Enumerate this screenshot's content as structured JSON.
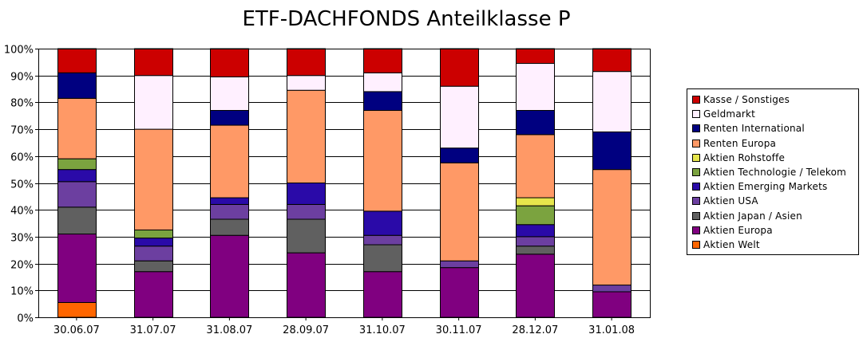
{
  "chart_data": {
    "type": "bar",
    "stacked": true,
    "title": "ETF-DACHFONDS Anteilklasse P",
    "categories": [
      "30.06.07",
      "31.07.07",
      "31.08.07",
      "28.09.07",
      "31.10.07",
      "30.11.07",
      "28.12.07",
      "31.01.08"
    ],
    "y_ticks": [
      "0%",
      "10%",
      "20%",
      "30%",
      "40%",
      "50%",
      "60%",
      "70%",
      "80%",
      "90%",
      "100%"
    ],
    "ylim": [
      0,
      100
    ],
    "grid": true,
    "legend_position": "right",
    "series": [
      {
        "name": "Aktien Welt",
        "color": "#FF6600",
        "values": [
          5.5,
          0,
          0,
          0,
          0,
          0,
          0,
          0
        ]
      },
      {
        "name": "Aktien Europa",
        "color": "#800080",
        "values": [
          25.5,
          17,
          30.5,
          24,
          17,
          18.5,
          23.5,
          9.5
        ]
      },
      {
        "name": "Aktien Japan / Asien",
        "color": "#606060",
        "values": [
          10,
          4,
          6,
          12.5,
          10,
          0,
          3,
          0
        ]
      },
      {
        "name": "Aktien USA",
        "color": "#6C3FA0",
        "values": [
          9.5,
          5.5,
          5.5,
          5.5,
          3.5,
          2.5,
          3.5,
          2.5
        ]
      },
      {
        "name": "Aktien Emerging Markets",
        "color": "#2A0AA8",
        "values": [
          4.5,
          3,
          2.5,
          8,
          9,
          0,
          4.5,
          0
        ]
      },
      {
        "name": "Aktien Technologie / Telekom",
        "color": "#7BA33F",
        "values": [
          4,
          3,
          0,
          0,
          0,
          0,
          7,
          0
        ]
      },
      {
        "name": "Aktien Rohstoffe",
        "color": "#E6E64C",
        "values": [
          0,
          0,
          0,
          0,
          0,
          0,
          3,
          0
        ]
      },
      {
        "name": "Renten Europa",
        "color": "#FF9966",
        "values": [
          22.5,
          37.5,
          27,
          34.5,
          37.5,
          36.5,
          23.5,
          43
        ]
      },
      {
        "name": "Renten International",
        "color": "#000080",
        "values": [
          9.5,
          0,
          5.5,
          0,
          7,
          5.5,
          9,
          14
        ]
      },
      {
        "name": "Geldmarkt",
        "color": "#FFF0FF",
        "values": [
          0,
          20,
          12.5,
          5.5,
          7,
          23,
          17.5,
          22.5
        ]
      },
      {
        "name": "Kasse / Sonstiges",
        "color": "#CC0000",
        "values": [
          9,
          10,
          10.5,
          10,
          9,
          14,
          5.5,
          8.5
        ]
      }
    ],
    "legend_order": [
      "Kasse / Sonstiges",
      "Geldmarkt",
      "Renten International",
      "Renten Europa",
      "Aktien Rohstoffe",
      "Aktien Technologie / Telekom",
      "Aktien Emerging Markets",
      "Aktien USA",
      "Aktien Japan / Asien",
      "Aktien Europa",
      "Aktien Welt"
    ]
  }
}
